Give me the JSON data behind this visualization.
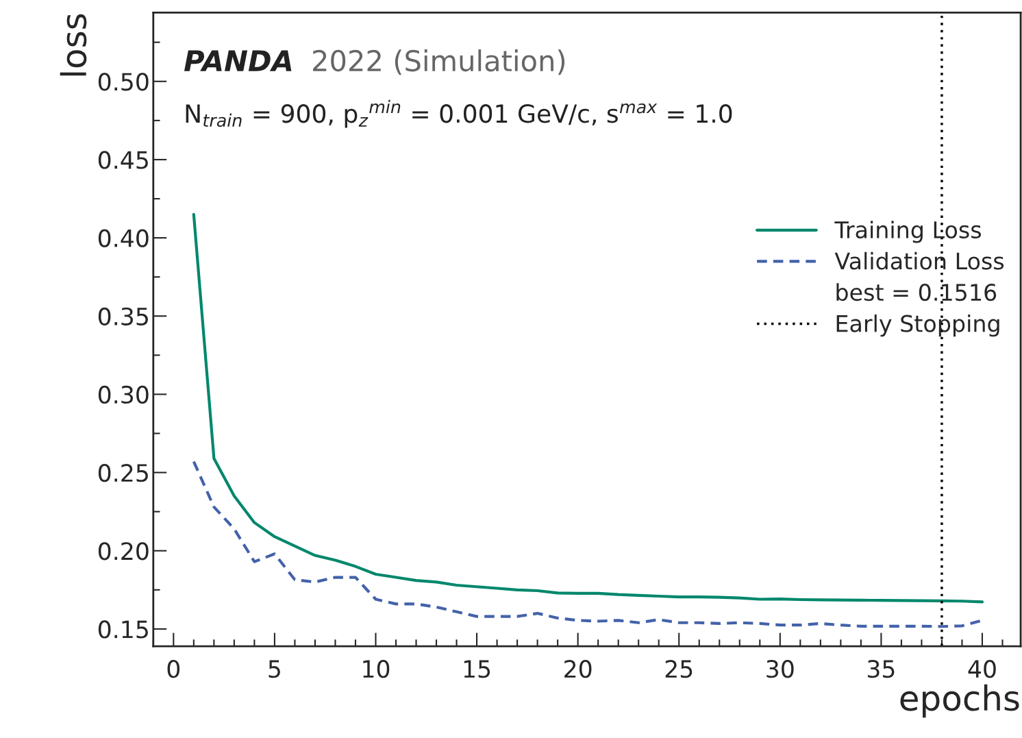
{
  "chart_data": {
    "type": "line",
    "title": "PANDA",
    "subtitle": "2022 (Simulation)",
    "xlabel": "epochs",
    "ylabel": "loss",
    "x": [
      1,
      2,
      3,
      4,
      5,
      6,
      7,
      8,
      9,
      10,
      11,
      12,
      13,
      14,
      15,
      16,
      17,
      18,
      19,
      20,
      21,
      22,
      23,
      24,
      25,
      26,
      27,
      28,
      29,
      30,
      31,
      32,
      33,
      34,
      35,
      36,
      37,
      38,
      39,
      40
    ],
    "series": [
      {
        "name": "Training Loss",
        "color": "#00876c",
        "line_style": "solid",
        "values": [
          0.415,
          0.259,
          0.235,
          0.218,
          0.209,
          0.203,
          0.197,
          0.194,
          0.19,
          0.185,
          0.183,
          0.181,
          0.18,
          0.178,
          0.177,
          0.176,
          0.175,
          0.1745,
          0.173,
          0.1728,
          0.1728,
          0.172,
          0.1715,
          0.171,
          0.1705,
          0.1705,
          0.1703,
          0.1698,
          0.169,
          0.1692,
          0.1688,
          0.1686,
          0.1685,
          0.1684,
          0.1683,
          0.1682,
          0.1681,
          0.168,
          0.1678,
          0.1673
        ]
      },
      {
        "name": "Validation Loss",
        "color": "#4462aa",
        "line_style": "dashed",
        "values": [
          0.257,
          0.228,
          0.214,
          0.193,
          0.198,
          0.1815,
          0.18,
          0.183,
          0.183,
          0.169,
          0.166,
          0.166,
          0.164,
          0.161,
          0.158,
          0.158,
          0.158,
          0.16,
          0.157,
          0.1555,
          0.155,
          0.1555,
          0.154,
          0.156,
          0.154,
          0.154,
          0.1535,
          0.154,
          0.1535,
          0.1525,
          0.1525,
          0.1535,
          0.1525,
          0.1518,
          0.1518,
          0.1518,
          0.1518,
          0.1516,
          0.152,
          0.1555
        ]
      }
    ],
    "ref_lines": [
      {
        "axis": "x",
        "value": 38,
        "label": "Early Stopping",
        "color": "#000000",
        "line_style": "dotted"
      }
    ],
    "annotations": [
      "best = 0.1516",
      "N$_{train}$ = 900, p$_{z}$$^{min}$ = 0.001 GeV/c, s$^{max}$ = 1.0"
    ],
    "xlim": [
      -1,
      41.9
    ],
    "ylim": [
      0.139,
      0.544
    ],
    "xticks": [
      0,
      5,
      10,
      15,
      20,
      25,
      30,
      35,
      40
    ],
    "yticks": [
      {
        "value": 0.15,
        "label": "0.15"
      },
      {
        "value": 0.2,
        "label": "0.20"
      },
      {
        "value": 0.25,
        "label": "0.25"
      },
      {
        "value": 0.3,
        "label": "0.30"
      },
      {
        "value": 0.35,
        "label": "0.35"
      },
      {
        "value": 0.4,
        "label": "0.40"
      },
      {
        "value": 0.45,
        "label": "0.45"
      },
      {
        "value": 0.5,
        "label": "0.50"
      }
    ],
    "grid": false,
    "legend": "right",
    "marker": "none"
  }
}
